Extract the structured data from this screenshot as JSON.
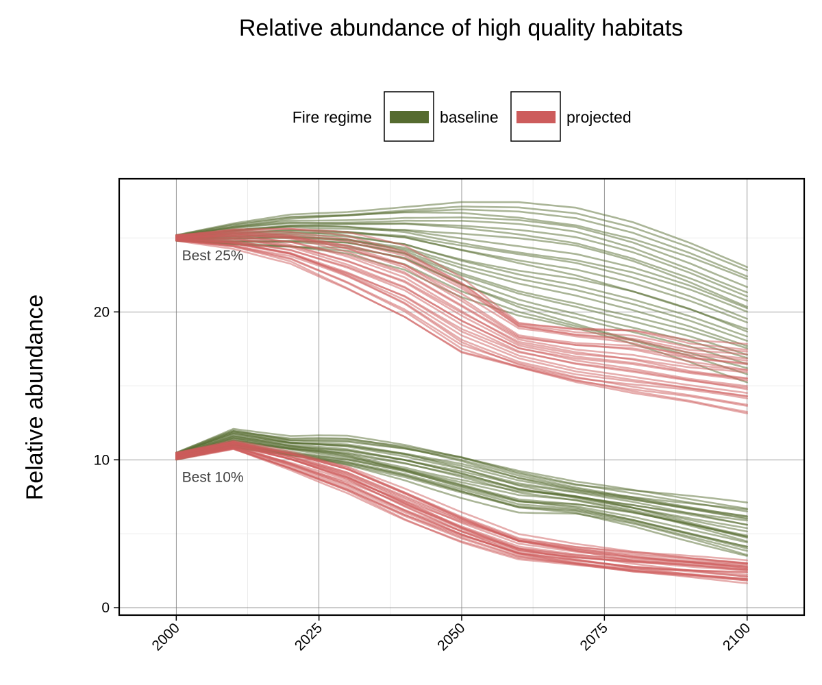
{
  "chart_data": {
    "type": "line",
    "title": "Relative abundance of high quality habitats",
    "xlabel": "",
    "ylabel": "Relative abundance",
    "xlim": [
      1990,
      2110
    ],
    "ylim": [
      -0.5,
      29
    ],
    "x_ticks": [
      "2000",
      "2025",
      "2050",
      "2075",
      "2100"
    ],
    "y_ticks": [
      "0",
      "10",
      "20"
    ],
    "grid": true,
    "legend": {
      "title": "Fire regime",
      "placement": "top",
      "entries": [
        {
          "label": "baseline",
          "color": "#556B2F"
        },
        {
          "label": "projected",
          "color": "#CD5C5C"
        }
      ]
    },
    "annotations": [
      {
        "text": "Best 25%",
        "x": 2001,
        "y": 23.5
      },
      {
        "text": "Best 10%",
        "x": 2001,
        "y": 8.5
      }
    ],
    "ensemble_members_per_series": 25,
    "series": [
      {
        "group": "Best 25%",
        "regime": "baseline",
        "color": "#556B2F",
        "x": [
          2000,
          2010,
          2020,
          2030,
          2040,
          2050,
          2060,
          2070,
          2080,
          2090,
          2100
        ],
        "y_mean": [
          25.0,
          25.4,
          25.6,
          25.5,
          25.0,
          24.0,
          23.0,
          22.0,
          21.0,
          20.0,
          18.8
        ],
        "y_min": [
          24.8,
          24.5,
          24.3,
          24.0,
          23.0,
          21.0,
          19.5,
          18.5,
          17.5,
          16.5,
          15.3
        ],
        "y_max": [
          25.2,
          26.0,
          26.6,
          26.8,
          27.2,
          27.6,
          27.6,
          27.2,
          26.2,
          24.8,
          23.2
        ]
      },
      {
        "group": "Best 25%",
        "regime": "projected",
        "color": "#CD5C5C",
        "x": [
          2000,
          2010,
          2020,
          2030,
          2040,
          2050,
          2060,
          2070,
          2080,
          2090,
          2100
        ],
        "y_mean": [
          25.0,
          25.0,
          24.5,
          23.5,
          22.0,
          19.5,
          17.5,
          17.0,
          16.5,
          16.0,
          15.5
        ],
        "y_min": [
          24.8,
          24.3,
          23.3,
          21.5,
          19.5,
          17.0,
          16.0,
          15.0,
          14.3,
          13.8,
          13.1
        ],
        "y_max": [
          25.2,
          25.6,
          25.6,
          25.3,
          24.5,
          22.5,
          19.5,
          19.0,
          18.8,
          18.0,
          17.8
        ]
      },
      {
        "group": "Best 10%",
        "regime": "baseline",
        "color": "#556B2F",
        "x": [
          2000,
          2010,
          2020,
          2030,
          2040,
          2050,
          2060,
          2070,
          2080,
          2090,
          2100
        ],
        "y_mean": [
          10.3,
          11.3,
          10.8,
          10.4,
          9.8,
          8.8,
          7.8,
          7.3,
          7.0,
          6.2,
          5.3
        ],
        "y_min": [
          10.0,
          10.8,
          10.2,
          9.5,
          8.6,
          7.5,
          6.5,
          6.3,
          5.5,
          4.5,
          3.5
        ],
        "y_max": [
          10.5,
          12.1,
          11.5,
          11.5,
          11.0,
          10.3,
          9.3,
          8.5,
          8.0,
          7.5,
          7.0
        ]
      },
      {
        "group": "Best 10%",
        "regime": "projected",
        "color": "#CD5C5C",
        "x": [
          2000,
          2010,
          2020,
          2030,
          2040,
          2050,
          2060,
          2070,
          2080,
          2090,
          2100
        ],
        "y_mean": [
          10.3,
          11.0,
          10.0,
          8.8,
          7.0,
          5.3,
          4.0,
          3.3,
          2.9,
          2.6,
          2.3
        ],
        "y_min": [
          10.0,
          10.7,
          9.3,
          7.8,
          6.0,
          4.5,
          3.3,
          2.8,
          2.3,
          2.0,
          1.7
        ],
        "y_max": [
          10.5,
          11.3,
          10.6,
          9.6,
          8.0,
          6.3,
          4.8,
          4.2,
          3.8,
          3.5,
          3.2
        ]
      }
    ]
  }
}
